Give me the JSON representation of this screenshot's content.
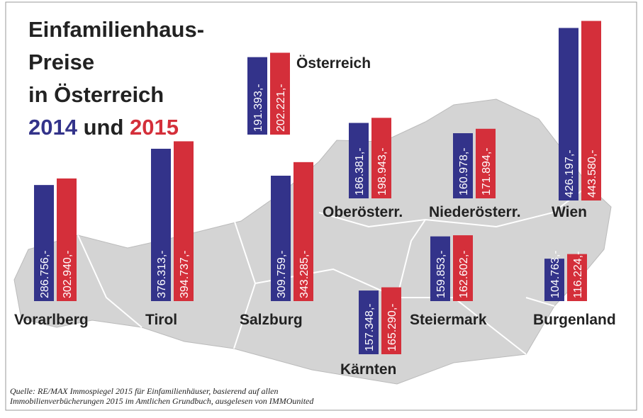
{
  "chart_data": {
    "type": "bar",
    "title_lines": [
      "Einfamilienhaus-",
      "Preise",
      "in Österreich"
    ],
    "legend_joiner": "und",
    "categories": [
      "Vorarlberg",
      "Tirol",
      "Salzburg",
      "Österreich",
      "Oberösterr.",
      "Niederösterr.",
      "Wien",
      "Kärnten",
      "Steiermark",
      "Burgenland"
    ],
    "series": [
      {
        "name": "2014",
        "color": "#33338a",
        "values": [
          286756,
          376313,
          309759,
          191393,
          186381,
          160978,
          426197,
          157348,
          159853,
          104763
        ],
        "value_labels": [
          "286.756,-",
          "376.313,-",
          "309.759,-",
          "191.393,-",
          "186.381,-",
          "160.978,-",
          "426.197,-",
          "157.348,-",
          "159.853,-",
          "104.763,-"
        ]
      },
      {
        "name": "2015",
        "color": "#d42f3a",
        "values": [
          302940,
          394737,
          343285,
          202221,
          198943,
          171894,
          443580,
          165290,
          162602,
          116224
        ],
        "value_labels": [
          "302.940,-",
          "394.737,-",
          "343.285,-",
          "202.221,-",
          "198.943,-",
          "171.894,-",
          "443.580,-",
          "165.290,-",
          "162.602,-",
          "116.224,-"
        ]
      }
    ],
    "source_lines": [
      "Quelle: RE/MAX Immospiegel 2015 für Einfamilienhäuser, basierend auf allen",
      "Immobilienverbücherungen 2015 im Amtlichen Grundbuch, ausgelesen von IMMOunited"
    ]
  }
}
